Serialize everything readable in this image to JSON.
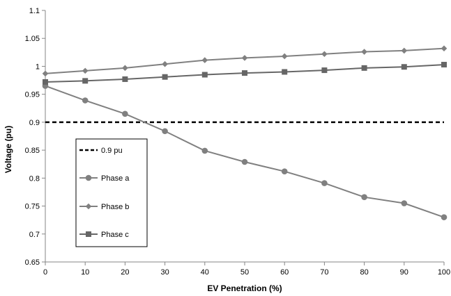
{
  "chart_data": {
    "type": "line",
    "xlabel": "EV Penetration (%)",
    "ylabel": "Voltage (pu)",
    "x": [
      0,
      10,
      20,
      30,
      40,
      50,
      60,
      70,
      80,
      90,
      100
    ],
    "xticks": [
      "0",
      "10",
      "20",
      "30",
      "40",
      "50",
      "60",
      "70",
      "80",
      "90",
      "100"
    ],
    "yticks": [
      "0.65",
      "0.7",
      "0.75",
      "0.8",
      "0.85",
      "0.9",
      "0.95",
      "1",
      "1.05",
      "1.1"
    ],
    "xlim": [
      0,
      100
    ],
    "ylim": [
      0.65,
      1.1
    ],
    "grid": false,
    "legend_position": "left-middle",
    "series": [
      {
        "name": "0.9 pu",
        "style": "dashed",
        "marker": "none",
        "color": "#000000",
        "values": [
          0.9,
          0.9,
          0.9,
          0.9,
          0.9,
          0.9,
          0.9,
          0.9,
          0.9,
          0.9,
          0.9
        ]
      },
      {
        "name": "Phase a",
        "style": "solid",
        "marker": "circle",
        "color": "#808080",
        "values": [
          0.965,
          0.939,
          0.915,
          0.884,
          0.849,
          0.829,
          0.812,
          0.791,
          0.766,
          0.755,
          0.73
        ]
      },
      {
        "name": "Phase b",
        "style": "solid",
        "marker": "diamond",
        "color": "#808080",
        "values": [
          0.987,
          0.992,
          0.997,
          1.004,
          1.011,
          1.015,
          1.018,
          1.022,
          1.026,
          1.028,
          1.032
        ]
      },
      {
        "name": "Phase c",
        "style": "solid",
        "marker": "square",
        "color": "#666666",
        "values": [
          0.972,
          0.974,
          0.977,
          0.981,
          0.985,
          0.988,
          0.99,
          0.993,
          0.997,
          0.999,
          1.003
        ]
      }
    ]
  }
}
